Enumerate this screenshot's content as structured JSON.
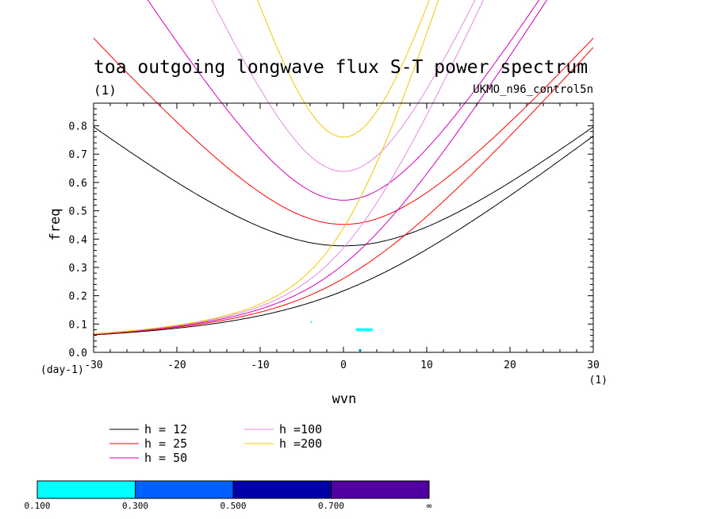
{
  "chart_data": {
    "type": "line",
    "title": "toa outgoing longwave flux S-T power spectrum",
    "title_units": "(1)",
    "dataset_label": "UKMO_n96_control5n",
    "xlabel": "wvn",
    "x_units": "(1)",
    "ylabel": "freq",
    "y_units": "(day-1)",
    "xlim": [
      -30,
      30
    ],
    "ylim": [
      0,
      0.88
    ],
    "xticks": [
      -30,
      -20,
      -10,
      0,
      10,
      20,
      30
    ],
    "yticks": [
      0.0,
      0.1,
      0.2,
      0.3,
      0.4,
      0.5,
      0.6,
      0.7,
      0.8
    ],
    "xtick_labels": [
      "-30",
      "-20",
      "-10",
      "0",
      "10",
      "20",
      "30"
    ],
    "ytick_labels": [
      "0.0",
      "0.1",
      "0.2",
      "0.3",
      "0.4",
      "0.5",
      "0.6",
      "0.7",
      "0.8"
    ],
    "series": [
      {
        "name": "h = 12",
        "h": 12,
        "color": "#000000"
      },
      {
        "name": "h = 25",
        "h": 25,
        "color": "#ff0000"
      },
      {
        "name": "h = 50",
        "h": 50,
        "color": "#d000b8"
      },
      {
        "name": "h =100",
        "h": 100,
        "color": "#e08ce0"
      },
      {
        "name": "h =200",
        "h": 200,
        "color": "#f0c800"
      }
    ],
    "shaded_regions": [
      {
        "x": [
          1.5,
          3.5
        ],
        "y": [
          0.075,
          0.085
        ],
        "level": "0.100-0.300"
      },
      {
        "x": [
          1.8,
          2.2
        ],
        "y": [
          0.005,
          0.01
        ],
        "level": "0.100-0.300"
      },
      {
        "x": [
          -4,
          -4
        ],
        "y": [
          0.105,
          0.11
        ],
        "level": "0.100-0.300"
      }
    ],
    "colorbar": {
      "labels": [
        "0.100",
        "0.300",
        "0.500",
        "0.700",
        "∞"
      ],
      "colors": [
        "#00ffff",
        "#0060ff",
        "#0000a8",
        "#5000a0"
      ]
    }
  }
}
